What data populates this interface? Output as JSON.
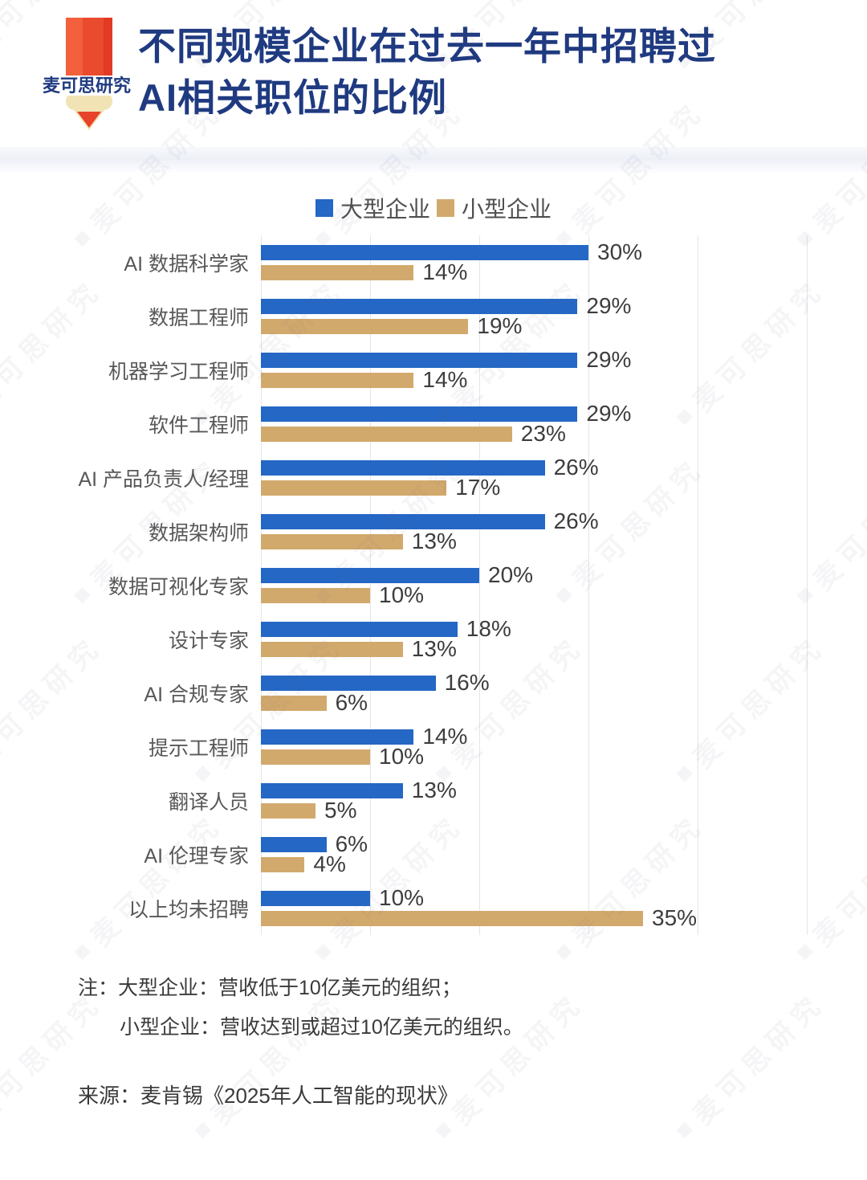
{
  "header": {
    "logo_text": "麦可思研究",
    "title_line1": "不同规模企业在过去一年中招聘过",
    "title_line2": "AI相关职位的比例",
    "title_color": "#1f3a80"
  },
  "icons": {
    "logo": "pencil-heart-logo-icon",
    "watermark_mark": "■"
  },
  "chart_data": {
    "type": "bar",
    "orientation": "horizontal",
    "title": "不同规模企业在过去一年中招聘过AI相关职位的比例",
    "categories": [
      "AI 数据科学家",
      "数据工程师",
      "机器学习工程师",
      "软件工程师",
      "AI 产品负责人/经理",
      "数据架构师",
      "数据可视化专家",
      "设计专家",
      "AI 合规专家",
      "提示工程师",
      "翻译人员",
      "AI 伦理专家",
      "以上均未招聘"
    ],
    "series": [
      {
        "name": "大型企业",
        "color": "#2467c5",
        "values": [
          30,
          29,
          29,
          29,
          26,
          26,
          20,
          18,
          16,
          14,
          13,
          6,
          10
        ]
      },
      {
        "name": "小型企业",
        "color": "#d2a96c",
        "values": [
          14,
          19,
          14,
          23,
          17,
          13,
          10,
          13,
          6,
          10,
          5,
          4,
          35
        ]
      }
    ],
    "value_suffix": "%",
    "xlabel": "",
    "ylabel": "",
    "xlim": [
      0,
      50
    ],
    "gridline_step": 10,
    "grid": true,
    "legend_position": "top"
  },
  "note": {
    "line1": "注：大型企业：营收低于10亿美元的组织；",
    "line2": "小型企业：营收达到或超过10亿美元的组织。"
  },
  "source": "来源：麦肯锡《2025年人工智能的现状》",
  "watermark": {
    "text": "麦可思研究"
  },
  "colors": {
    "bar_large": "#2467c5",
    "bar_small": "#d2a96c",
    "gridline": "#e4e5e8",
    "label_text": "#585858",
    "value_text": "#3d3d3d"
  }
}
